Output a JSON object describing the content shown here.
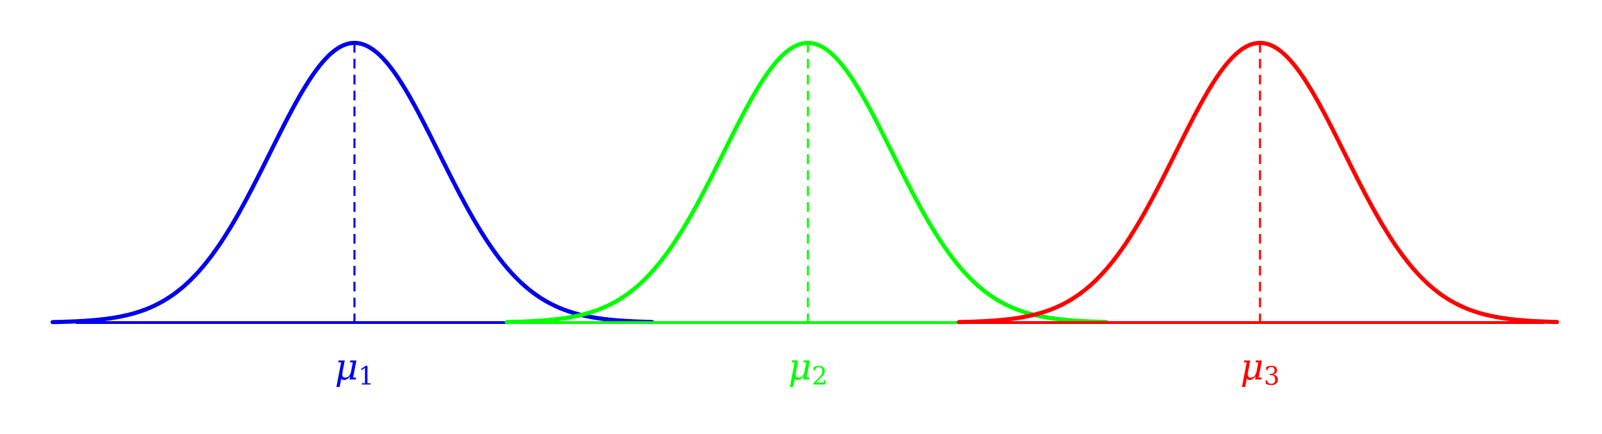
{
  "diagram": {
    "distributions": [
      {
        "id": "dist-1",
        "label_symbol": "μ",
        "label_subscript": "1",
        "color": "#0000ee"
      },
      {
        "id": "dist-2",
        "label_symbol": "μ",
        "label_subscript": "2",
        "color": "#00ff00"
      },
      {
        "id": "dist-3",
        "label_symbol": "μ",
        "label_subscript": "3",
        "color": "#ff0000"
      }
    ]
  }
}
